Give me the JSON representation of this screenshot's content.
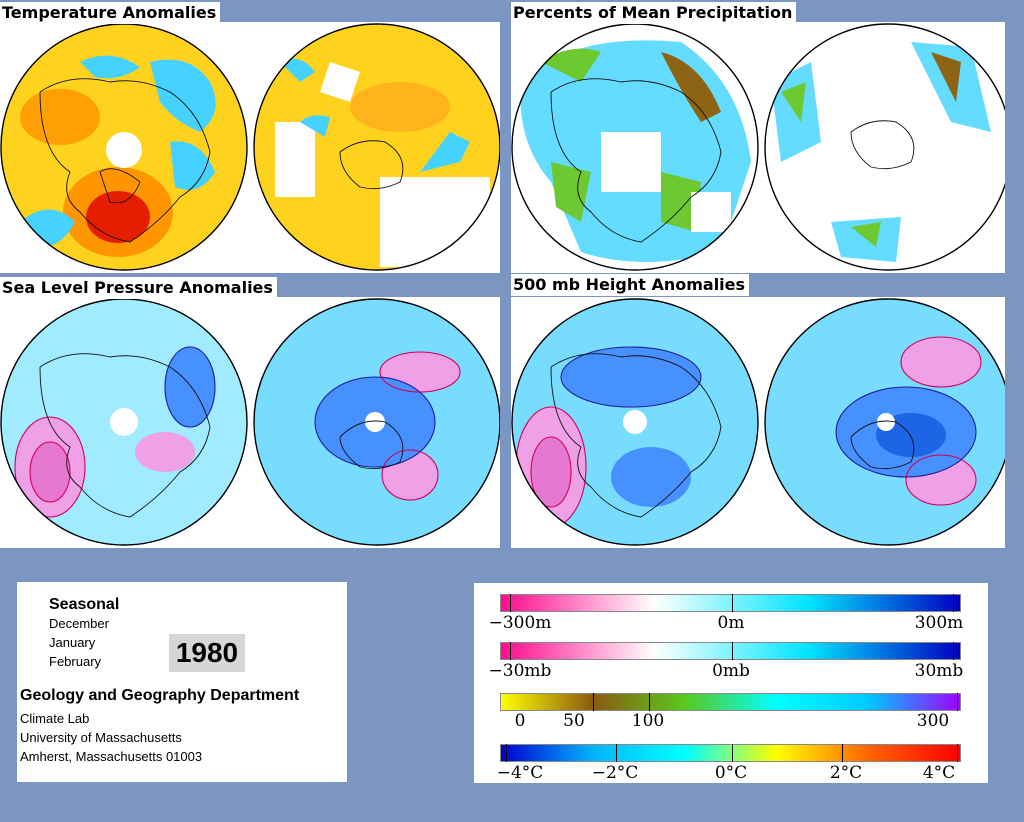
{
  "panels": {
    "temperature": {
      "title": "Temperature Anomalies"
    },
    "precipitation": {
      "title": "Percents of Mean Precipitation"
    },
    "slp": {
      "title": "Sea Level Pressure Anomalies"
    },
    "height500": {
      "title": "500 mb Height Anomalies"
    }
  },
  "info": {
    "period": "Seasonal",
    "months": [
      "December",
      "January",
      "February"
    ],
    "year": "1980",
    "department": "Geology and Geography Department",
    "lab": "Climate Lab",
    "university": "University of Massachusetts",
    "address": "Amherst, Massachusetts 01003"
  },
  "legends": {
    "height": {
      "gradient": [
        "#ff0a8c",
        "#ffffff",
        "#00e6ff",
        "#0000c0"
      ],
      "labels": [
        "−300m",
        "0m",
        "300m"
      ]
    },
    "pressure": {
      "gradient": [
        "#ff0a8c",
        "#ffffff",
        "#00e6ff",
        "#0000c0"
      ],
      "labels": [
        "−30mb",
        "0mb",
        "30mb"
      ]
    },
    "precipitation": {
      "gradient": [
        "#ffff00",
        "#8b5a10",
        "#5ac81e",
        "#00ffff",
        "#00c8ff",
        "#a000ff"
      ],
      "labels": [
        "0",
        "50",
        "100",
        "300"
      ]
    },
    "temperature": {
      "gradient": [
        "#0000d0",
        "#00b4ff",
        "#00ffff",
        "#ffff00",
        "#ff6400",
        "#ff0000"
      ],
      "labels": [
        "−4°C",
        "−2°C",
        "0°C",
        "2°C",
        "4°C"
      ]
    }
  },
  "colors": {
    "background": "#7b96c3",
    "temp_warm": "#ffd21e",
    "temp_warmer": "#ff9600",
    "temp_hot": "#e61e00",
    "temp_cool": "#46d2ff",
    "precip_wet": "#64dcff",
    "precip_normal": "#6ec832",
    "precip_dry": "#8c6414",
    "anom_base": "#a0ebff",
    "anom_positive": "#f0a0e6",
    "anom_negative": "#4691ff",
    "contour_pos": "#d2005a",
    "contour_neg": "#1e1e9b"
  }
}
